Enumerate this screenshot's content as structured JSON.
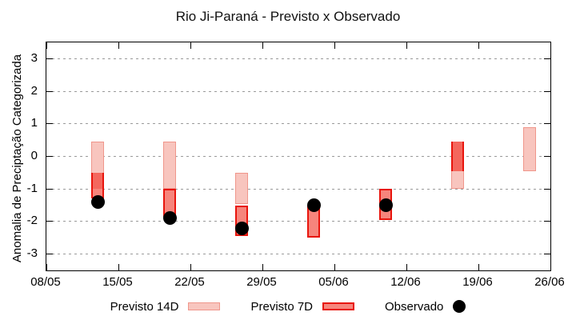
{
  "chart_data": {
    "type": "bar",
    "subtype": "range-bars-with-points",
    "title": "Rio Ji-Paraná - Previsto x Observado",
    "ylabel": "Anomalia de Preciptação Categorizada",
    "xlabel": "",
    "ylim": [
      -3.5,
      3.5
    ],
    "yticks": [
      3,
      2,
      1,
      0,
      -1,
      -2,
      -3
    ],
    "grid": "horizontal-dashed",
    "xtick_labels": [
      "08/05",
      "15/05",
      "22/05",
      "29/05",
      "05/06",
      "12/06",
      "19/06",
      "26/06"
    ],
    "xtick_days": [
      0,
      7,
      14,
      21,
      28,
      35,
      42,
      49
    ],
    "x_axis_span_days": 49,
    "groups": [
      {
        "date": "13/05",
        "day": 5,
        "previsto_14d": [
          0.45,
          -1.0
        ],
        "previsto_7d": [
          -0.5,
          -1.3
        ],
        "observado": -1.4
      },
      {
        "date": "20/05",
        "day": 12,
        "previsto_14d": [
          0.45,
          -1.0
        ],
        "previsto_7d": [
          -1.0,
          -1.85
        ],
        "observado": -1.9
      },
      {
        "date": "27/05",
        "day": 19,
        "previsto_14d": [
          -0.5,
          -1.45
        ],
        "previsto_7d": [
          -1.5,
          -2.45
        ],
        "observado": -2.2
      },
      {
        "date": "03/06",
        "day": 26,
        "previsto_14d": null,
        "previsto_7d": [
          -1.5,
          -2.5
        ],
        "observado": -1.5
      },
      {
        "date": "10/06",
        "day": 33,
        "previsto_14d": null,
        "previsto_7d": [
          -1.0,
          -1.95
        ],
        "observado": -1.5
      },
      {
        "date": "17/06",
        "day": 40,
        "previsto_14d": [
          0.45,
          -1.0
        ],
        "previsto_7d": [
          0.45,
          -0.45
        ],
        "observado": null
      },
      {
        "date": "24/06",
        "day": 47,
        "previsto_14d": [
          0.9,
          -0.45
        ],
        "previsto_7d": null,
        "observado": null
      }
    ],
    "legend": [
      {
        "label": "Previsto 14D",
        "type": "box",
        "fill": "#f8c5be",
        "border": "#f0968b"
      },
      {
        "label": "Previsto 7D",
        "type": "box",
        "fill": "#f6857c",
        "border": "#e8150d"
      },
      {
        "label": "Observado",
        "type": "dot",
        "color": "#000000"
      }
    ],
    "colors": {
      "previsto_14d_fill": "#f8c5be",
      "previsto_14d_border": "#f0968b",
      "previsto_7d_fill": "#f6857c",
      "previsto_7d_border": "#e8150d",
      "overlap_fill": "#f4675d",
      "observado": "#000000",
      "grid": "#9a9a9a",
      "axis": "#000000"
    }
  }
}
